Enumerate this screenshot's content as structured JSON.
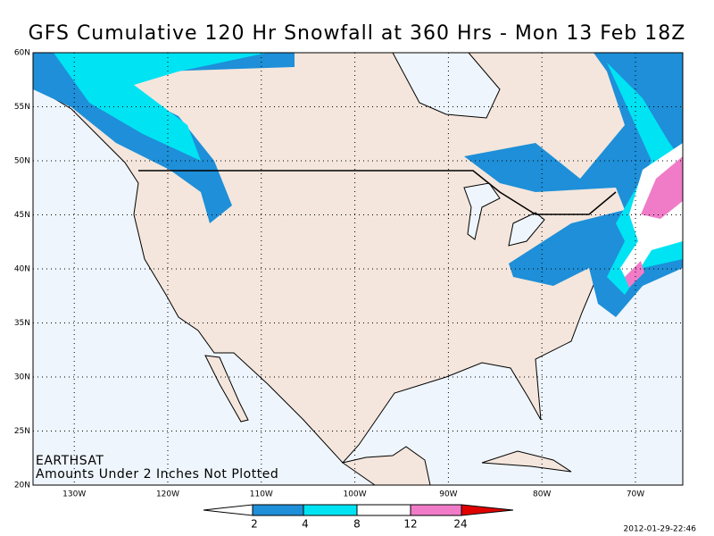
{
  "title": "GFS Cumulative 120 Hr Snowfall at 360 Hrs - Mon 13 Feb 18Z",
  "lat_labels": [
    "60N",
    "55N",
    "50N",
    "45N",
    "40N",
    "35N",
    "30N",
    "25N",
    "20N"
  ],
  "lon_labels": [
    "130W",
    "120W",
    "110W",
    "100W",
    "90W",
    "80W",
    "70W"
  ],
  "credits": [
    "EARTHSAT",
    "Amounts Under 2 Inches Not Plotted"
  ],
  "legend_labels": [
    "2",
    "4",
    "8",
    "12",
    "24"
  ],
  "timestamp": "2012-01-29-22:46"
}
